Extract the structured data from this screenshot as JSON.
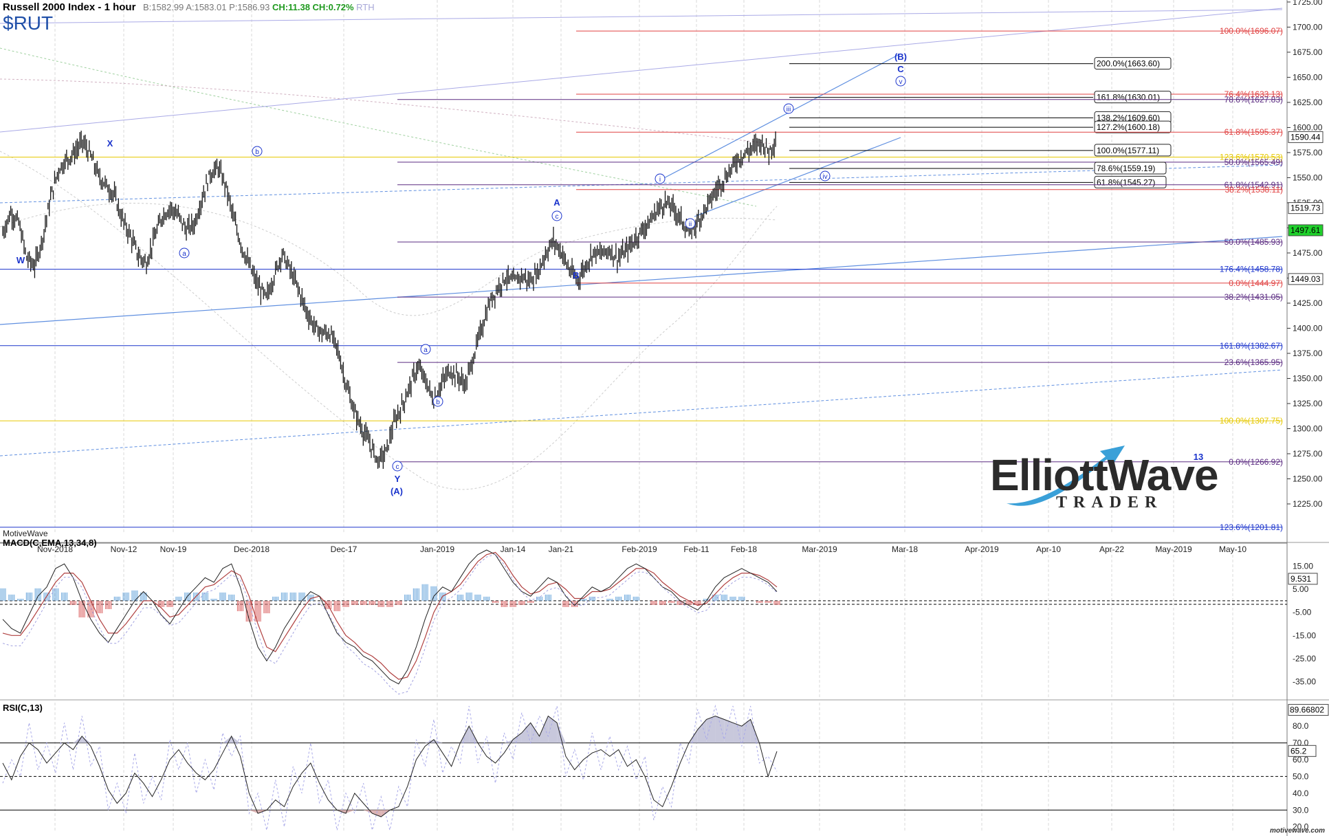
{
  "header": {
    "title": "Russell 2000 Index - 1 hour",
    "bid": "B:1582.99",
    "ask": "A:1583.01",
    "price": "P:1586.93",
    "change": "CH:11.38",
    "change_pct": "CH:0.72%",
    "session": "RTH",
    "symbol": "$RUT",
    "footer": "MotiveWave",
    "brand": "motivewave.com"
  },
  "logo": {
    "main": "ElliottWave",
    "sub": "TRADER"
  },
  "colors": {
    "bg": "#ffffff",
    "grid": "#d9d9d9",
    "blue": "#1a33cc",
    "red": "#e04040",
    "purple": "#5a2a80",
    "yellow": "#e6c800",
    "black": "#000000",
    "lightblue": "#5f8fe0"
  },
  "chart_data": [
    {
      "type": "candlestick",
      "title": "Russell 2000 Index - 1 hour",
      "ylim": [
        1188,
        1727
      ],
      "yticks": [
        1225,
        1250,
        1275,
        1300,
        1325,
        1350,
        1375,
        1400,
        1425,
        1450,
        1475,
        1500,
        1525,
        1550,
        1575,
        1600,
        1625,
        1650,
        1675,
        1700,
        1725
      ],
      "xlabels": [
        "Nov-2018",
        "Nov-12",
        "Nov-19",
        "Dec-2018",
        "Dec-17",
        "Jan-2019",
        "Jan-14",
        "Jan-21",
        "Feb-2019",
        "Feb-11",
        "Feb-18",
        "Mar-2019",
        "Mar-18",
        "Apr-2019",
        "Apr-10",
        "Apr-22",
        "May-2019",
        "May-10"
      ],
      "price_path": [
        1495,
        1515,
        1505,
        1470,
        1462,
        1490,
        1530,
        1558,
        1568,
        1575,
        1586,
        1572,
        1552,
        1542,
        1532,
        1508,
        1492,
        1472,
        1465,
        1490,
        1512,
        1520,
        1512,
        1498,
        1504,
        1530,
        1554,
        1560,
        1540,
        1507,
        1480,
        1460,
        1442,
        1430,
        1452,
        1475,
        1458,
        1440,
        1418,
        1402,
        1395,
        1395,
        1378,
        1345,
        1318,
        1300,
        1285,
        1268,
        1276,
        1305,
        1322,
        1342,
        1362,
        1347,
        1328,
        1345,
        1358,
        1352,
        1344,
        1372,
        1400,
        1425,
        1440,
        1451,
        1446,
        1452,
        1447,
        1455,
        1474,
        1487,
        1476,
        1458,
        1448,
        1462,
        1476,
        1474,
        1478,
        1470,
        1476,
        1486,
        1497,
        1505,
        1518,
        1525,
        1520,
        1508,
        1496,
        1505,
        1519,
        1532,
        1545,
        1555,
        1568,
        1574,
        1580,
        1586,
        1576,
        1590
      ],
      "current_prices": [
        "1590.44",
        "1519.73",
        "1497.61",
        "1449.03"
      ],
      "fib_levels": [
        {
          "label": "100.0%(1696.07)",
          "value": 1696.07,
          "color": "red"
        },
        {
          "label": "200.0%(1663.60)",
          "value": 1663.6,
          "color": "black"
        },
        {
          "label": "76.4%(1633.13)",
          "value": 1633.13,
          "color": "red"
        },
        {
          "label": "161.8%(1630.01)",
          "value": 1630.01,
          "color": "black"
        },
        {
          "label": "78.6%(1627.83)",
          "value": 1627.83,
          "color": "purple"
        },
        {
          "label": "138.2%(1609.60)",
          "value": 1609.6,
          "color": "black"
        },
        {
          "label": "127.2%(1600.18)",
          "value": 1600.18,
          "color": "black"
        },
        {
          "label": "61.8%(1595.37)",
          "value": 1595.37,
          "color": "red"
        },
        {
          "label": "100.0%(1577.11)",
          "value": 1577.11,
          "color": "black"
        },
        {
          "label": "123.6%(1570.53)",
          "value": 1570.53,
          "color": "yellow"
        },
        {
          "label": "50.0%(1565.49)",
          "value": 1565.49,
          "color": "purple"
        },
        {
          "label": "78.6%(1559.19)",
          "value": 1559.19,
          "color": "black"
        },
        {
          "label": "61.8%(1545.27)",
          "value": 1545.27,
          "color": "black"
        },
        {
          "label": "61.8%(1542.91)",
          "value": 1542.91,
          "color": "purple"
        },
        {
          "label": "38.2%(1538.11)",
          "value": 1538.11,
          "color": "red"
        },
        {
          "label": "50.0%(1485.93)",
          "value": 1485.93,
          "color": "purple"
        },
        {
          "label": "176.4%(1458.78)",
          "value": 1458.78,
          "color": "blue"
        },
        {
          "label": "0.0%(1444.97)",
          "value": 1444.97,
          "color": "red"
        },
        {
          "label": "38.2%(1431.05)",
          "value": 1431.05,
          "color": "purple"
        },
        {
          "label": "161.8%(1382.67)",
          "value": 1382.67,
          "color": "blue"
        },
        {
          "label": "23.6%(1365.95)",
          "value": 1365.95,
          "color": "purple"
        },
        {
          "label": "100.0%(1307.75)",
          "value": 1307.75,
          "color": "yellow"
        },
        {
          "label": "0.0%(1266.92)",
          "value": 1266.92,
          "color": "purple"
        },
        {
          "label": "123.6%(1201.81)",
          "value": 1201.81,
          "color": "blue"
        }
      ],
      "wave_labels": [
        {
          "text": "X",
          "style": "plain"
        },
        {
          "text": "W",
          "style": "plain"
        },
        {
          "text": "a",
          "style": "circle"
        },
        {
          "text": "b",
          "style": "circle"
        },
        {
          "text": "a",
          "style": "circle"
        },
        {
          "text": "b",
          "style": "circle"
        },
        {
          "text": "c",
          "style": "circle"
        },
        {
          "text": "Y",
          "style": "plain"
        },
        {
          "text": "(A)",
          "style": "plain"
        },
        {
          "text": "A",
          "style": "plain"
        },
        {
          "text": "c",
          "style": "circle"
        },
        {
          "text": "B",
          "style": "plain"
        },
        {
          "text": "i",
          "style": "circle"
        },
        {
          "text": "ii",
          "style": "circle"
        },
        {
          "text": "iii",
          "style": "circle"
        },
        {
          "text": "iv",
          "style": "circle"
        },
        {
          "text": "v",
          "style": "circle"
        },
        {
          "text": "C",
          "style": "plain"
        },
        {
          "text": "(B)",
          "style": "plain"
        },
        {
          "text": "13",
          "style": "plain"
        }
      ]
    },
    {
      "type": "line",
      "title": "MACD(C,EMA,13,34,8)",
      "ylim": [
        -42,
        22
      ],
      "yticks": [
        15.0,
        5.0,
        -5.0,
        -15.0,
        -25.0,
        -35.0
      ],
      "ytick_labels": [
        "15.00",
        "5.00",
        "-5.00",
        "-15.00",
        "-25.00",
        "-35.00"
      ],
      "current": "9.531",
      "macd_path": [
        -8,
        -12,
        -14,
        -6,
        2,
        6,
        14,
        16,
        10,
        0,
        -8,
        -14,
        -18,
        -12,
        -6,
        0,
        4,
        0,
        -6,
        -10,
        -4,
        2,
        6,
        10,
        8,
        14,
        16,
        6,
        -8,
        -20,
        -26,
        -20,
        -12,
        -6,
        0,
        4,
        2,
        -6,
        -14,
        -18,
        -20,
        -24,
        -26,
        -30,
        -34,
        -36,
        -30,
        -20,
        -8,
        2,
        6,
        4,
        10,
        16,
        20,
        22,
        20,
        14,
        8,
        4,
        2,
        6,
        10,
        8,
        2,
        -2,
        2,
        6,
        4,
        6,
        10,
        14,
        16,
        14,
        10,
        6,
        4,
        0,
        -2,
        -4,
        0,
        6,
        10,
        12,
        14,
        12,
        10,
        8,
        4
      ],
      "signal_path": [
        -14,
        -15,
        -15,
        -10,
        -4,
        2,
        8,
        12,
        12,
        8,
        0,
        -8,
        -14,
        -14,
        -10,
        -5,
        0,
        0,
        -3,
        -7,
        -6,
        -2,
        2,
        6,
        7,
        10,
        13,
        11,
        2,
        -10,
        -20,
        -22,
        -16,
        -10,
        -4,
        1,
        2,
        -2,
        -9,
        -15,
        -18,
        -22,
        -24,
        -27,
        -31,
        -34,
        -33,
        -26,
        -16,
        -5,
        2,
        4,
        7,
        12,
        17,
        20,
        21,
        17,
        11,
        6,
        3,
        4,
        7,
        8,
        5,
        1,
        1,
        4,
        4,
        5,
        8,
        11,
        14,
        14,
        12,
        8,
        5,
        2,
        0,
        -2,
        -1,
        3,
        7,
        10,
        12,
        12,
        11,
        9,
        6
      ]
    },
    {
      "type": "line",
      "title": "RSI(C,13)",
      "ylim": [
        17,
        94
      ],
      "yticks": [
        20.0,
        30.0,
        40.0,
        50.0,
        60.0,
        70.0,
        80.0
      ],
      "ytick_labels": [
        "20.0",
        "30.0",
        "40.0",
        "50.0",
        "60.0",
        "70.0",
        "80.0"
      ],
      "current": [
        "89.66802",
        "65.2"
      ],
      "reference_lines": [
        70,
        50,
        30
      ],
      "rsi_path": [
        58,
        48,
        62,
        70,
        66,
        58,
        64,
        70,
        66,
        74,
        68,
        56,
        42,
        34,
        40,
        52,
        46,
        38,
        48,
        60,
        66,
        58,
        52,
        48,
        54,
        64,
        74,
        62,
        40,
        28,
        30,
        36,
        32,
        44,
        52,
        58,
        46,
        36,
        30,
        28,
        40,
        34,
        28,
        26,
        30,
        32,
        44,
        60,
        68,
        72,
        64,
        56,
        70,
        80,
        70,
        62,
        58,
        64,
        72,
        76,
        82,
        74,
        86,
        82,
        62,
        54,
        60,
        64,
        66,
        62,
        66,
        56,
        60,
        50,
        36,
        32,
        44,
        58,
        70,
        78,
        84,
        86,
        84,
        82,
        80,
        84,
        70,
        50,
        65
      ]
    }
  ]
}
